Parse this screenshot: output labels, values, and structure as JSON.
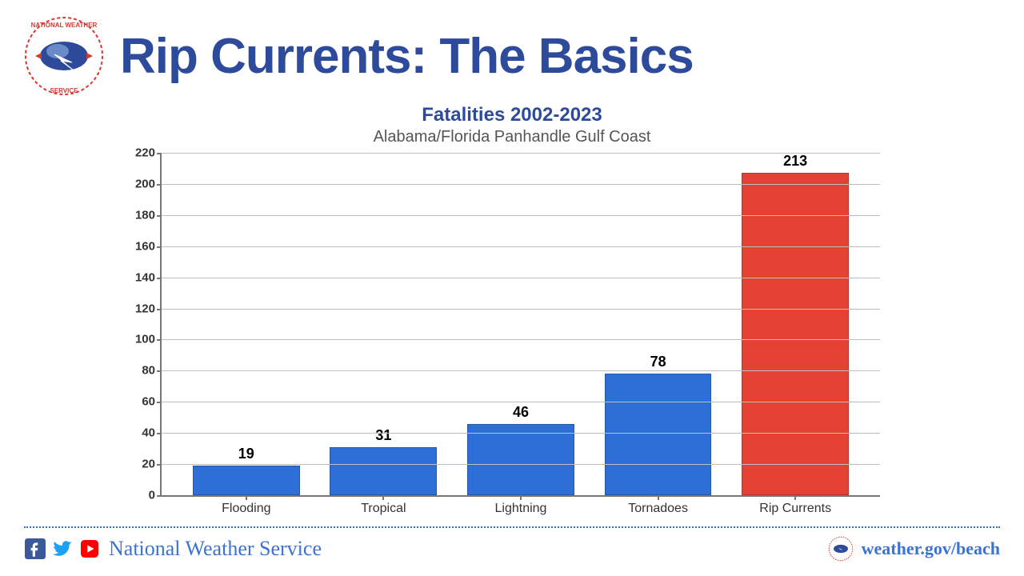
{
  "header": {
    "title": "Rip Currents: The Basics",
    "title_color": "#2d4b9a",
    "title_fontsize": 62
  },
  "chart": {
    "type": "bar",
    "title": "Fatalities 2002-2023",
    "title_color": "#2d4b9a",
    "title_fontsize": 24,
    "subtitle": "Alabama/Florida Panhandle Gulf Coast",
    "subtitle_color": "#555555",
    "subtitle_fontsize": 20,
    "categories": [
      "Flooding",
      "Tropical",
      "Lightning",
      "Tornadoes",
      "Rip Currents"
    ],
    "values": [
      19,
      31,
      46,
      78,
      213
    ],
    "bar_colors": [
      "#2d6fd6",
      "#2d6fd6",
      "#2d6fd6",
      "#2d6fd6",
      "#e34234"
    ],
    "bar_width": 0.78,
    "ylim": [
      0,
      220
    ],
    "ytick_step": 20,
    "value_label_fontsize": 18,
    "xtick_fontsize": 16,
    "ytick_fontsize": 15,
    "background_color": "#ffffff",
    "grid_color": "#bfbfbf",
    "axis_color": "#777777"
  },
  "footer": {
    "org_name": "National Weather Service",
    "url": "weather.gov/beach",
    "text_color": "#3b73d1",
    "divider_color": "#2d6fd6",
    "social": [
      "facebook",
      "twitter",
      "youtube"
    ]
  }
}
